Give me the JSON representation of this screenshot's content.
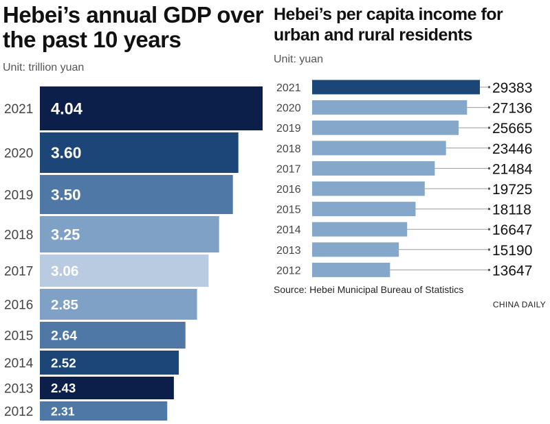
{
  "left": {
    "title": "Hebei’s annual GDP over the past 10 years",
    "unit": "Unit: trillion yuan"
  },
  "right": {
    "title": "Hebei’s per capita income for urban and rural residents",
    "unit": "Unit: yuan"
  },
  "source": "Source: Hebei Municipal Bureau of Statistics",
  "credit": "CHINA DAILY",
  "chart_data": [
    {
      "type": "bar",
      "orientation": "horizontal",
      "title": "Hebei’s annual GDP over the past 10 years",
      "unit": "trillion yuan",
      "categories": [
        "2021",
        "2020",
        "2019",
        "2018",
        "2017",
        "2016",
        "2015",
        "2014",
        "2013",
        "2012"
      ],
      "values": [
        4.04,
        3.6,
        3.5,
        3.25,
        3.06,
        2.85,
        2.64,
        2.52,
        2.43,
        2.31
      ],
      "value_labels": [
        "4.04",
        "3.60",
        "3.50",
        "3.25",
        "3.06",
        "2.85",
        "2.64",
        "2.52",
        "2.43",
        "2.31"
      ],
      "colors": [
        "#0c1f4a",
        "#1d4678",
        "#4f78a6",
        "#7fa1c6",
        "#b8cbe0",
        "#7fa1c6",
        "#4f78a6",
        "#1d4678",
        "#0c1f4a",
        "#4f78a6"
      ]
    },
    {
      "type": "bar",
      "orientation": "horizontal",
      "title": "Hebei’s per capita income for urban and rural residents",
      "unit": "yuan",
      "categories": [
        "2021",
        "2020",
        "2019",
        "2018",
        "2017",
        "2016",
        "2015",
        "2014",
        "2013",
        "2012"
      ],
      "values": [
        29383,
        27136,
        25665,
        23446,
        21484,
        19725,
        18118,
        16647,
        15190,
        13647
      ],
      "colors": [
        "#1d4678",
        "#84a7ca",
        "#84a7ca",
        "#84a7ca",
        "#84a7ca",
        "#84a7ca",
        "#84a7ca",
        "#84a7ca",
        "#84a7ca",
        "#84a7ca"
      ]
    }
  ]
}
